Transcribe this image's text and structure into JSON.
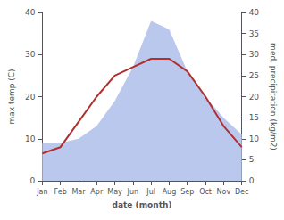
{
  "chart_data": {
    "type": "line",
    "categories": [
      "Jan",
      "Feb",
      "Mar",
      "Apr",
      "May",
      "Jun",
      "Jul",
      "Aug",
      "Sep",
      "Oct",
      "Nov",
      "Dec"
    ],
    "xlabel": "date (month)",
    "ylabel": "max temp (C)",
    "y2label": "med. precipitation (kg/m2)",
    "ylim": [
      0,
      40
    ],
    "yticks": [
      0,
      10,
      20,
      30,
      40
    ],
    "y2lim": [
      0,
      40
    ],
    "y2ticks": [
      0,
      5,
      10,
      15,
      20,
      25,
      30,
      35,
      40
    ],
    "grid": false,
    "series": [
      {
        "type": "area",
        "axis": "y2",
        "color": "#bbc8ee",
        "values": [
          9.0,
          9.0,
          10.0,
          13.0,
          19.0,
          27.0,
          38.0,
          36.0,
          26.0,
          20.0,
          15.0,
          11.0
        ]
      },
      {
        "type": "line",
        "color": "#b03030",
        "values": [
          6.5,
          8.0,
          14.0,
          20.0,
          25.0,
          27.0,
          29.0,
          29.0,
          26.0,
          20.0,
          13.0,
          8.0
        ]
      }
    ]
  }
}
